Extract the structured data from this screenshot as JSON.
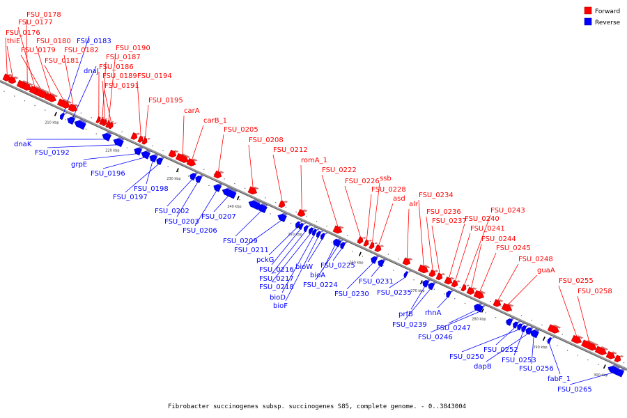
{
  "title": "Fibrobacter succinogenes subsp. succinogenes S85, complete genome. - 0..3843004",
  "legend": [
    {
      "label": "Forward",
      "color": "#ff0000"
    },
    {
      "label": "Reverse",
      "color": "#0000ff"
    }
  ],
  "colors": {
    "forward": "#ff0000",
    "reverse": "#0000ff",
    "backbone": "#888888"
  },
  "ticks": [
    "210 kbp",
    "220 kbp",
    "230 kbp",
    "240 kbp",
    "250 kbp",
    "260 kbp",
    "270 kbp",
    "280 kbp",
    "290 kbp",
    "300 kbp"
  ],
  "forward_genes": [
    "FSU_0178",
    "FSU_0177",
    "FSU_0176",
    "thiE",
    "FSU_0180",
    "FSU_0179",
    "FSU_0182",
    "FSU_0181",
    "FSU_0190",
    "FSU_0187",
    "FSU_0186",
    "FSU_0189",
    "FSU_0191",
    "FSU_0194",
    "FSU_0195",
    "carA",
    "carB_1",
    "FSU_0205",
    "FSU_0208",
    "FSU_0212",
    "romA_1",
    "FSU_0222",
    "ssb",
    "FSU_0226",
    "FSU_0228",
    "asd",
    "alr",
    "FSU_0234",
    "FSU_0236",
    "FSU_0237",
    "FSU_0243",
    "FSU_0240",
    "FSU_0241",
    "FSU_0244",
    "FSU_0245",
    "FSU_0248",
    "guaA",
    "FSU_0255",
    "FSU_0258"
  ],
  "reverse_genes": [
    "FSU_0183",
    "dnaJ",
    "dnaK",
    "FSU_0192",
    "grpE",
    "FSU_0196",
    "FSU_0198",
    "FSU_0197",
    "FSU_0202",
    "FSU_0203",
    "FSU_0206",
    "FSU_0207",
    "FSU_0209",
    "FSU_0211",
    "pckG",
    "FSU_0216",
    "FSU_0217",
    "FSU_0218",
    "bioD",
    "bioF",
    "bioW",
    "bioA",
    "FSU_0225",
    "FSU_0224",
    "FSU_0231",
    "FSU_0230",
    "FSU_0235",
    "prfB",
    "FSU_0239",
    "rhnA",
    "FSU_0247",
    "FSU_0246",
    "FSU_0252",
    "FSU_0250",
    "FSU_0253",
    "dapB",
    "FSU_0256",
    "fabF_1",
    "FSU_0265"
  ]
}
